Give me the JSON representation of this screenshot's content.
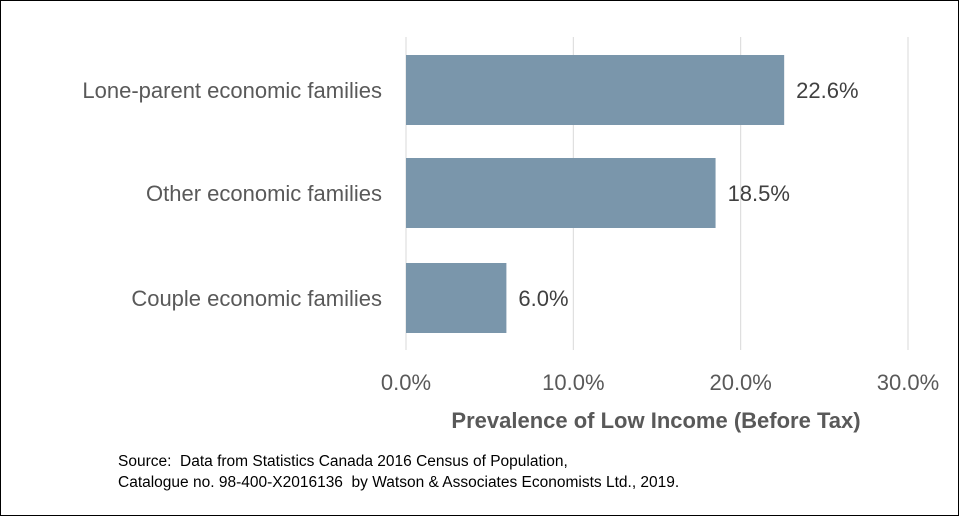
{
  "chart_data": {
    "type": "bar",
    "orientation": "horizontal",
    "categories": [
      "Lone-parent economic families",
      "Other economic families",
      "Couple economic families"
    ],
    "values": [
      22.6,
      18.5,
      6.0
    ],
    "value_labels": [
      "22.6%",
      "18.5%",
      "6.0%"
    ],
    "xlabel": "Prevalence of Low Income (Before Tax)",
    "xlim": [
      0,
      30
    ],
    "xticks": [
      0,
      10,
      20,
      30
    ],
    "xtick_labels": [
      "0.0%",
      "10.0%",
      "20.0%",
      "30.0%"
    ],
    "grid": "vertical",
    "bar_color": "#7a96ab",
    "grid_color": "#d9d9d9"
  },
  "source": {
    "line1": "Source:  Data from Statistics Canada 2016 Census of Population,",
    "line2": "Catalogue no. 98-400-X2016136  by Watson & Associates Economists Ltd., 2019."
  }
}
